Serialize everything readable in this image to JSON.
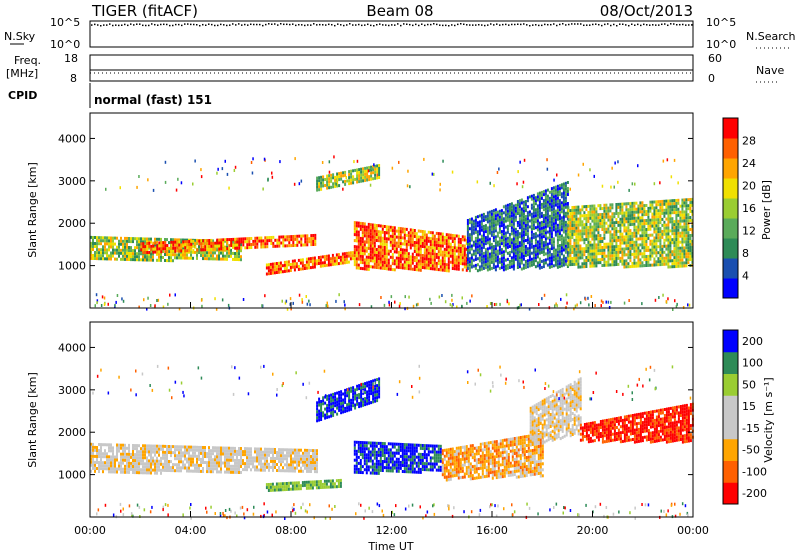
{
  "header": {
    "radar": "TIGER (fitACF)",
    "beam": "Beam 08",
    "date": "08/Oct/2013"
  },
  "nsky_panel": {
    "left_label": "N.Sky",
    "right_label": "N.Search",
    "left_ticks": [
      "10^5",
      "10^0"
    ],
    "right_ticks": [
      "10^5",
      "10^0"
    ]
  },
  "freq_panel": {
    "left_label_1": "Freq.",
    "left_label_2": "[MHz]",
    "right_label": "Nave",
    "left_ticks": [
      "18",
      "8"
    ],
    "right_ticks": [
      "60",
      "0"
    ]
  },
  "cpid_panel": {
    "label": "CPID",
    "value": "normal (fast) 151"
  },
  "x_axis": {
    "label": "Time UT",
    "ticks": [
      "00:00",
      "04:00",
      "08:00",
      "12:00",
      "16:00",
      "20:00",
      "00:00"
    ]
  },
  "colors": {
    "power_scale": [
      "#0000ff",
      "#1a4fb0",
      "#2e8b57",
      "#5aab5a",
      "#9acd32",
      "#f0e000",
      "#ffa500",
      "#ff6000",
      "#ff0000"
    ],
    "velocity_scale": [
      "#ff0000",
      "#ff6000",
      "#ffa500",
      "#c8c8c8",
      "#c8c8c8",
      "#9acd32",
      "#2e8b57",
      "#0000ff"
    ]
  },
  "chart_data": [
    {
      "type": "heatmap",
      "name": "power",
      "ylabel": "Slant Range [km]",
      "yticks": [
        "1000",
        "2000",
        "3000",
        "4000"
      ],
      "ylim": [
        0,
        4600
      ],
      "xlim": [
        0,
        24
      ],
      "colorbar_label": "Power [dB]",
      "colorbar_ticks": [
        "4",
        "8",
        "12",
        "16",
        "20",
        "24",
        "28"
      ],
      "bands": [
        {
          "x": [
            0,
            6
          ],
          "ylo": [
            1150,
            1150
          ],
          "yhi": [
            1700,
            1600
          ],
          "level": "mid"
        },
        {
          "x": [
            2,
            9
          ],
          "ylo": [
            1300,
            1500
          ],
          "yhi": [
            1550,
            1750
          ],
          "level": "high"
        },
        {
          "x": [
            7,
            10.5
          ],
          "ylo": [
            800,
            1100
          ],
          "yhi": [
            1050,
            1350
          ],
          "level": "high"
        },
        {
          "x": [
            10.5,
            15
          ],
          "ylo": [
            950,
            900
          ],
          "yhi": [
            2050,
            1700
          ],
          "level": "high"
        },
        {
          "x": [
            15,
            19
          ],
          "ylo": [
            900,
            1000
          ],
          "yhi": [
            2100,
            3000
          ],
          "level": "low"
        },
        {
          "x": [
            19,
            24
          ],
          "ylo": [
            1000,
            1000
          ],
          "yhi": [
            2400,
            2600
          ],
          "level": "mid"
        },
        {
          "x": [
            9,
            11.5
          ],
          "ylo": [
            2800,
            3100
          ],
          "yhi": [
            3100,
            3400
          ],
          "level": "mid"
        }
      ]
    },
    {
      "type": "heatmap",
      "name": "velocity",
      "ylabel": "Slant Range [km]",
      "yticks": [
        "1000",
        "2000",
        "3000",
        "4000"
      ],
      "ylim": [
        0,
        4600
      ],
      "xlim": [
        0,
        24
      ],
      "colorbar_label": "Velocity [m s⁻¹]",
      "colorbar_ticks": [
        "200",
        "100",
        "50",
        "15",
        "-15",
        "-50",
        "-100",
        "-200"
      ],
      "bands": [
        {
          "x": [
            0,
            9
          ],
          "ylo": [
            1050,
            1100
          ],
          "yhi": [
            1750,
            1600
          ],
          "level": "gray"
        },
        {
          "x": [
            10.5,
            14
          ],
          "ylo": [
            1050,
            1100
          ],
          "yhi": [
            1800,
            1700
          ],
          "level": "blue"
        },
        {
          "x": [
            14,
            18
          ],
          "ylo": [
            900,
            1000
          ],
          "yhi": [
            1600,
            2000
          ],
          "level": "orange"
        },
        {
          "x": [
            17.5,
            19.5
          ],
          "ylo": [
            1700,
            2000
          ],
          "yhi": [
            2600,
            3300
          ],
          "level": "gray"
        },
        {
          "x": [
            19.5,
            24
          ],
          "ylo": [
            1800,
            1800
          ],
          "yhi": [
            2200,
            2700
          ],
          "level": "red"
        },
        {
          "x": [
            9,
            11.5
          ],
          "ylo": [
            2300,
            2800
          ],
          "yhi": [
            2800,
            3300
          ],
          "level": "blue"
        },
        {
          "x": [
            7,
            10
          ],
          "ylo": [
            650,
            750
          ],
          "yhi": [
            800,
            900
          ],
          "level": "green"
        }
      ]
    }
  ]
}
